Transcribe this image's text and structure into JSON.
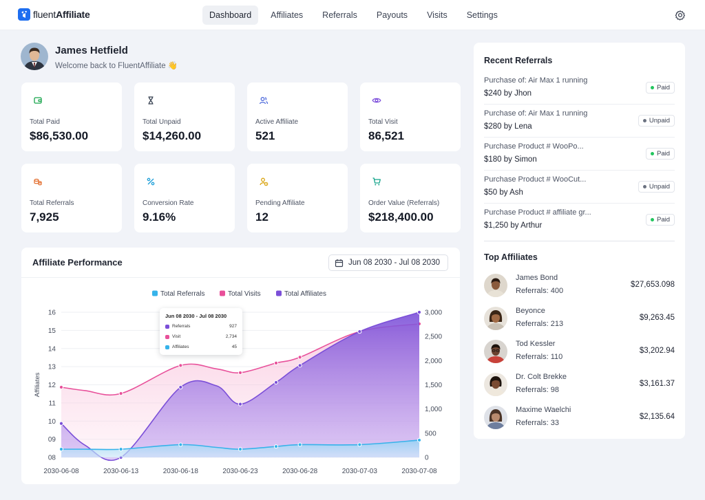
{
  "app": {
    "logo_prefix": "fluent",
    "logo_suffix": "Affiliate"
  },
  "nav": [
    {
      "label": "Dashboard",
      "active": true
    },
    {
      "label": "Affiliates"
    },
    {
      "label": "Referrals"
    },
    {
      "label": "Payouts"
    },
    {
      "label": "Visits"
    },
    {
      "label": "Settings"
    }
  ],
  "profile": {
    "name": "James Hetfield",
    "welcome": "Welcome back to FluentAffiliate 👋"
  },
  "stats": [
    {
      "label": "Total Paid",
      "value": "$86,530.00",
      "icon": "wallet-icon",
      "color": "#16a34a",
      "bg": "#e6f6ec"
    },
    {
      "label": "Total Unpaid",
      "value": "$14,260.00",
      "icon": "hourglass-icon",
      "color": "#374151",
      "bg": "#eef0f3"
    },
    {
      "label": "Active Affiliate",
      "value": "521",
      "icon": "users-icon",
      "color": "#4f6bdc",
      "bg": "#e8ecfb"
    },
    {
      "label": "Total Visit",
      "value": "86,521",
      "icon": "eye-icon",
      "color": "#7c4ddb",
      "bg": "#efe8fb"
    },
    {
      "label": "Total Referrals",
      "value": "7,925",
      "icon": "coins-icon",
      "color": "#e26b2a",
      "bg": "#fdeee4"
    },
    {
      "label": "Conversion Rate",
      "value": "9.16%",
      "icon": "percent-icon",
      "color": "#1f9fd8",
      "bg": "#e2f3fb"
    },
    {
      "label": "Pending Affiliate",
      "value": "12",
      "icon": "user-pending-icon",
      "color": "#d9a412",
      "bg": "#fcf5dd"
    },
    {
      "label": "Order Value (Referrals)",
      "value": "$218,400.00",
      "icon": "cart-icon",
      "color": "#13a38a",
      "bg": "#e0f5f0"
    }
  ],
  "performance": {
    "title": "Affiliate Performance",
    "date_range": "Jun 08 2030 - Jul 08 2030",
    "tooltip": {
      "title": "Jun 08 2030 - Jul 08 2030",
      "rows": [
        {
          "label": "Referrals",
          "value": "927",
          "color": "#7b4fd8"
        },
        {
          "label": "Visit",
          "value": "2,734",
          "color": "#e8509a"
        },
        {
          "label": "Affiliates",
          "value": "45",
          "color": "#36b3ea"
        }
      ]
    }
  },
  "chart_data": {
    "type": "area",
    "title": "",
    "ylabel": "Affiliates",
    "x": [
      "2030-06-08",
      "2030-06-10",
      "2030-06-13",
      "2030-06-18",
      "2030-06-21",
      "2030-06-23",
      "2030-06-26",
      "2030-06-28",
      "2030-07-03",
      "2030-07-08"
    ],
    "x_tick_labels": [
      "2030-06-08",
      "2030-06-13",
      "2030-06-18",
      "2030-06-23",
      "2030-06-28",
      "2030-07-03",
      "2030-07-08"
    ],
    "y_left": {
      "ticks": [
        "08",
        "09",
        "10",
        "11",
        "12",
        "13",
        "14",
        "15",
        "16"
      ],
      "range": [
        8,
        16
      ]
    },
    "y_right": {
      "ticks": [
        "0",
        "500",
        "1,000",
        "1,500",
        "2,000",
        "2,500",
        "3,000"
      ],
      "range": [
        0,
        3000
      ]
    },
    "legend_position": "top-center",
    "series": [
      {
        "name": "Total Referrals",
        "color": "#36b3ea",
        "axis": "left",
        "values": [
          8.45,
          8.45,
          8.45,
          8.7,
          8.55,
          8.45,
          8.6,
          8.7,
          8.7,
          8.95
        ]
      },
      {
        "name": "Total Visits",
        "color": "#e8509a",
        "axis": "right",
        "values": [
          1450,
          1380,
          1320,
          1900,
          1830,
          1750,
          1950,
          2070,
          2600,
          2760
        ]
      },
      {
        "name": "Total Affiliates",
        "color": "#7b4fd8",
        "axis": "right",
        "values": [
          700,
          250,
          0,
          1450,
          1480,
          1100,
          1550,
          1900,
          2600,
          3000
        ]
      }
    ]
  },
  "recent_referrals": {
    "title": "Recent Referrals",
    "items": [
      {
        "title": "Purchase of: Air Max 1 running",
        "amount": "$240 by Jhon",
        "status": "Paid"
      },
      {
        "title": "Purchase of: Air Max 1 running",
        "amount": "$280 by Lena",
        "status": "Unpaid"
      },
      {
        "title": "Purchase Product # WooPo...",
        "amount": "$180 by Simon",
        "status": "Paid"
      },
      {
        "title": "Purchase Product # WooCut...",
        "amount": "$50 by Ash",
        "status": "Unpaid"
      },
      {
        "title": "Purchase Product # affiliate gr...",
        "amount": "$1,250 by Arthur",
        "status": "Paid"
      }
    ],
    "status_colors": {
      "Paid": "#22c55e",
      "Unpaid": "#6b7280"
    }
  },
  "top_affiliates": {
    "title": "Top Affiliates",
    "items": [
      {
        "name": "James Bond",
        "referrals": "Referrals: 400",
        "amount": "$27,653.098",
        "skin": "#8a5a3c",
        "hair": "#2a1a12",
        "shirt": "#e8e2d6",
        "bg": "#ded7cc"
      },
      {
        "name": "Beyonce",
        "referrals": "Referrals: 213",
        "amount": "$9,263.45",
        "skin": "#a06a45",
        "hair": "#3b2616",
        "shirt": "#c9c1b5",
        "bg": "#e7e2da"
      },
      {
        "name": "Tod Kessler",
        "referrals": "Referrals: 110",
        "amount": "$3,202.94",
        "skin": "#6b4330",
        "hair": "#1c120c",
        "shirt": "#c8423a",
        "bg": "#d8d4cf"
      },
      {
        "name": "Dr. Colt Brekke",
        "referrals": "Referrals: 98",
        "amount": "$3,161.37",
        "skin": "#7a4b33",
        "hair": "#1e140e",
        "shirt": "#efe8dc",
        "bg": "#ece7e0"
      },
      {
        "name": "Maxime Waelchi",
        "referrals": "Referrals: 33",
        "amount": "$2,135.64",
        "skin": "#b88a6e",
        "hair": "#4a3326",
        "shirt": "#6e7e9e",
        "bg": "#dfe2e8"
      }
    ]
  }
}
